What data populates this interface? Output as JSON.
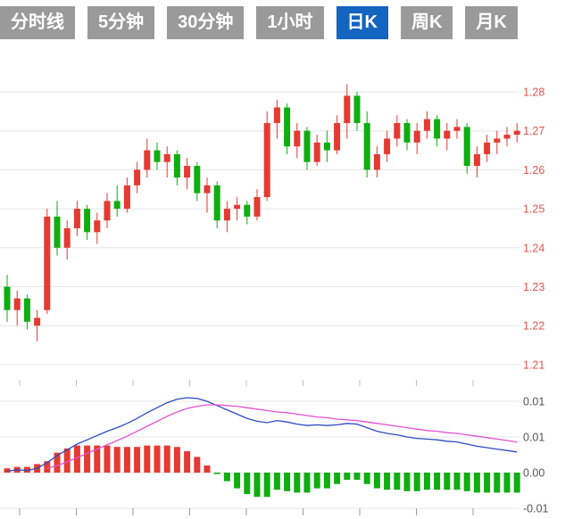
{
  "tabs": {
    "items": [
      {
        "label": "分时线",
        "selected": false
      },
      {
        "label": "5分钟",
        "selected": false
      },
      {
        "label": "30分钟",
        "selected": false
      },
      {
        "label": "1小时",
        "selected": false
      },
      {
        "label": "日K",
        "selected": true
      },
      {
        "label": "周K",
        "selected": false
      },
      {
        "label": "月K",
        "selected": false
      }
    ],
    "selected_bg": "#1365c0",
    "unselected_bg": "#9a9a9a",
    "text_color": "#ffffff"
  },
  "chart_data": {
    "type": "candlestick",
    "title": "",
    "panels": [
      "price-candles",
      "macd"
    ],
    "price_axis": {
      "labels": [
        "1.28",
        "1.27",
        "1.26",
        "1.25",
        "1.24",
        "1.23",
        "1.22",
        "1.21"
      ],
      "step": 0.01,
      "range": [
        1.205,
        1.285
      ]
    },
    "macd_axis": {
      "labels": [
        "0.01",
        "0.01",
        "0.00",
        "-0.01"
      ],
      "step": 0.005,
      "range": [
        -0.0065,
        0.012
      ]
    },
    "candles": [
      [
        1.23,
        1.233,
        1.221,
        1.224
      ],
      [
        1.224,
        1.229,
        1.22,
        1.227
      ],
      [
        1.227,
        1.228,
        1.219,
        1.221
      ],
      [
        1.22,
        1.224,
        1.216,
        1.222
      ],
      [
        1.224,
        1.25,
        1.223,
        1.248
      ],
      [
        1.248,
        1.252,
        1.238,
        1.24
      ],
      [
        1.24,
        1.247,
        1.237,
        1.245
      ],
      [
        1.245,
        1.252,
        1.243,
        1.25
      ],
      [
        1.25,
        1.251,
        1.242,
        1.244
      ],
      [
        1.244,
        1.249,
        1.241,
        1.247
      ],
      [
        1.247,
        1.254,
        1.245,
        1.252
      ],
      [
        1.252,
        1.256,
        1.248,
        1.25
      ],
      [
        1.25,
        1.258,
        1.249,
        1.256
      ],
      [
        1.256,
        1.262,
        1.254,
        1.26
      ],
      [
        1.26,
        1.268,
        1.258,
        1.265
      ],
      [
        1.265,
        1.267,
        1.26,
        1.262
      ],
      [
        1.262,
        1.266,
        1.258,
        1.264
      ],
      [
        1.264,
        1.265,
        1.256,
        1.258
      ],
      [
        1.258,
        1.263,
        1.255,
        1.261
      ],
      [
        1.261,
        1.262,
        1.252,
        1.254
      ],
      [
        1.254,
        1.258,
        1.249,
        1.256
      ],
      [
        1.256,
        1.257,
        1.245,
        1.247
      ],
      [
        1.247,
        1.252,
        1.244,
        1.25
      ],
      [
        1.25,
        1.253,
        1.247,
        1.251
      ],
      [
        1.251,
        1.252,
        1.246,
        1.248
      ],
      [
        1.248,
        1.255,
        1.247,
        1.253
      ],
      [
        1.253,
        1.275,
        1.252,
        1.272
      ],
      [
        1.272,
        1.278,
        1.268,
        1.276
      ],
      [
        1.276,
        1.277,
        1.264,
        1.266
      ],
      [
        1.266,
        1.272,
        1.263,
        1.27
      ],
      [
        1.27,
        1.271,
        1.26,
        1.262
      ],
      [
        1.262,
        1.269,
        1.261,
        1.267
      ],
      [
        1.267,
        1.27,
        1.262,
        1.265
      ],
      [
        1.265,
        1.274,
        1.264,
        1.272
      ],
      [
        1.272,
        1.282,
        1.268,
        1.279
      ],
      [
        1.279,
        1.28,
        1.27,
        1.272
      ],
      [
        1.272,
        1.275,
        1.258,
        1.26
      ],
      [
        1.26,
        1.266,
        1.258,
        1.264
      ],
      [
        1.264,
        1.27,
        1.262,
        1.268
      ],
      [
        1.268,
        1.274,
        1.266,
        1.272
      ],
      [
        1.272,
        1.273,
        1.265,
        1.267
      ],
      [
        1.267,
        1.272,
        1.264,
        1.27
      ],
      [
        1.27,
        1.275,
        1.268,
        1.273
      ],
      [
        1.273,
        1.274,
        1.266,
        1.268
      ],
      [
        1.268,
        1.272,
        1.265,
        1.27
      ],
      [
        1.27,
        1.273,
        1.268,
        1.271
      ],
      [
        1.271,
        1.272,
        1.259,
        1.261
      ],
      [
        1.261,
        1.266,
        1.258,
        1.264
      ],
      [
        1.264,
        1.269,
        1.262,
        1.267
      ],
      [
        1.267,
        1.27,
        1.264,
        1.268
      ],
      [
        1.268,
        1.271,
        1.266,
        1.269
      ],
      [
        1.269,
        1.272,
        1.267,
        1.27
      ]
    ],
    "macd": {
      "dif": [
        0.0002,
        0.0004,
        0.0003,
        0.0006,
        0.0014,
        0.0024,
        0.0032,
        0.004,
        0.0046,
        0.0052,
        0.0058,
        0.0063,
        0.0069,
        0.0076,
        0.0084,
        0.0091,
        0.0098,
        0.0103,
        0.0105,
        0.0104,
        0.01,
        0.0094,
        0.0088,
        0.0082,
        0.0076,
        0.0072,
        0.007,
        0.0073,
        0.0071,
        0.0068,
        0.0066,
        0.0067,
        0.0066,
        0.0067,
        0.0069,
        0.0068,
        0.0063,
        0.0058,
        0.0055,
        0.0053,
        0.005,
        0.0048,
        0.0047,
        0.0046,
        0.0044,
        0.0043,
        0.004,
        0.0037,
        0.0035,
        0.0033,
        0.0031,
        0.0029
      ],
      "dea": [
        null,
        null,
        null,
        null,
        0.0006,
        0.001,
        0.0015,
        0.0021,
        0.0027,
        0.0033,
        0.0039,
        0.0045,
        0.0051,
        0.0058,
        0.0065,
        0.0072,
        0.0079,
        0.0085,
        0.009,
        0.0093,
        0.0095,
        0.0095,
        0.0094,
        0.0093,
        0.0091,
        0.0089,
        0.0087,
        0.0085,
        0.0084,
        0.0082,
        0.008,
        0.0078,
        0.0077,
        0.0075,
        0.0074,
        0.0073,
        0.0071,
        0.0069,
        0.0067,
        0.0065,
        0.0063,
        0.0061,
        0.0059,
        0.0058,
        0.0056,
        0.0055,
        0.0053,
        0.0051,
        0.0049,
        0.0047,
        0.0045,
        0.0043
      ],
      "histogram": [
        0.0006,
        0.0008,
        0.0008,
        0.0012,
        0.0016,
        0.0028,
        0.0034,
        0.0038,
        0.0038,
        0.0038,
        0.0038,
        0.0036,
        0.0036,
        0.0036,
        0.0038,
        0.0038,
        0.0038,
        0.0036,
        0.003,
        0.0022,
        0.001,
        -0.0002,
        -0.0012,
        -0.0022,
        -0.003,
        -0.0034,
        -0.0034,
        -0.0024,
        -0.0026,
        -0.0028,
        -0.0028,
        -0.0022,
        -0.0022,
        -0.0016,
        -0.001,
        -0.001,
        -0.0016,
        -0.0022,
        -0.0024,
        -0.0024,
        -0.0026,
        -0.0026,
        -0.0024,
        -0.0024,
        -0.0024,
        -0.0024,
        -0.0026,
        -0.0028,
        -0.0028,
        -0.0028,
        -0.0028,
        -0.0028
      ]
    },
    "colors": {
      "up": "#e43a31",
      "down": "#0fae10",
      "dif": "#2c4bc4",
      "dea": "#e251d3",
      "grid": "#e6e6e6",
      "axis_text_price": "#e0574e",
      "axis_text_macd": "#555555",
      "tick": "#9a9a9a"
    },
    "legend": "none",
    "x_axis_labels": []
  }
}
